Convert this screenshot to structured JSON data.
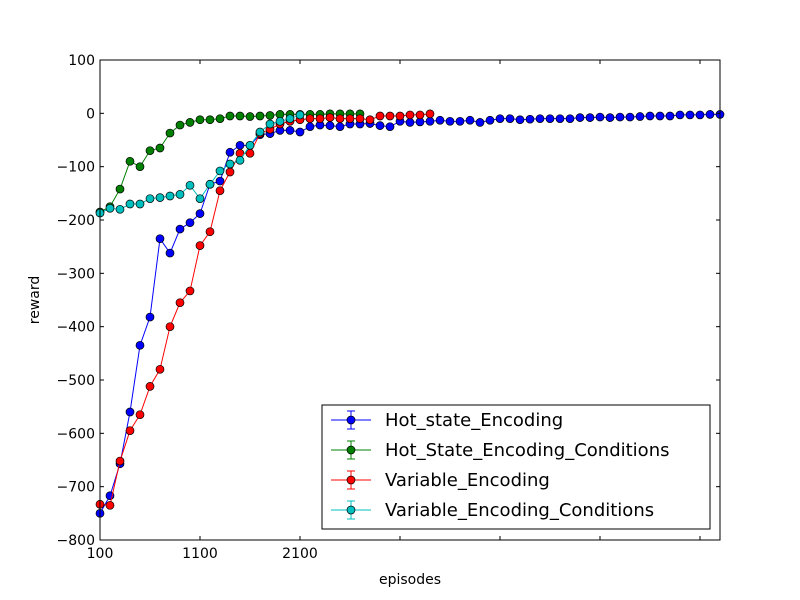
{
  "chart_data": {
    "type": "line",
    "xlabel": "episodes",
    "ylabel": "reward",
    "xlim": [
      100,
      6300
    ],
    "ylim": [
      -800,
      100
    ],
    "xticks": [
      100,
      1100,
      2100,
      3100,
      4100,
      5100,
      6100
    ],
    "xtick_labels": [
      "100",
      "1100",
      "2100",
      "",
      "",
      "",
      ""
    ],
    "yticks": [
      -800,
      -700,
      -600,
      -500,
      -400,
      -300,
      -200,
      -100,
      0,
      100
    ],
    "ytick_labels": [
      "−800",
      "−700",
      "−600",
      "−500",
      "−400",
      "−300",
      "−200",
      "−100",
      "0",
      "100"
    ],
    "grid": false,
    "legend_position": "lower-right",
    "series": [
      {
        "name": "Hot_state_Encoding",
        "color": "#0000ff",
        "x": [
          100,
          200,
          300,
          400,
          500,
          600,
          700,
          800,
          900,
          1000,
          1100,
          1200,
          1300,
          1400,
          1500,
          1600,
          1700,
          1800,
          1900,
          2000,
          2100,
          2200,
          2300,
          2400,
          2500,
          2600,
          2700,
          2800,
          2900,
          3000,
          3100,
          3200,
          3300,
          3400,
          3500,
          3600,
          3700,
          3800,
          3900,
          4000,
          4100,
          4200,
          4300,
          4400,
          4500,
          4600,
          4700,
          4800,
          4900,
          5000,
          5100,
          5200,
          5300,
          5400,
          5500,
          5600,
          5700,
          5800,
          5900,
          6000,
          6100,
          6200,
          6300
        ],
        "values": [
          -750,
          -717,
          -657,
          -560,
          -435,
          -382,
          -235,
          -262,
          -217,
          -205,
          -188,
          -133,
          -127,
          -73,
          -60,
          -60,
          -40,
          -38,
          -32,
          -32,
          -35,
          -25,
          -22,
          -23,
          -25,
          -20,
          -20,
          -19,
          -23,
          -25,
          -15,
          -17,
          -16,
          -15,
          -13,
          -15,
          -15,
          -13,
          -17,
          -13,
          -10,
          -10,
          -12,
          -11,
          -10,
          -10,
          -10,
          -10,
          -8,
          -8,
          -7,
          -8,
          -7,
          -7,
          -6,
          -5,
          -5,
          -5,
          -3,
          -3,
          -3,
          -2,
          -2
        ]
      },
      {
        "name": "Hot_State_Encoding_Conditions",
        "color": "#008000",
        "x": [
          100,
          200,
          300,
          400,
          500,
          600,
          700,
          800,
          900,
          1000,
          1100,
          1200,
          1300,
          1400,
          1500,
          1600,
          1700,
          1800,
          1900,
          2000,
          2100,
          2200,
          2300,
          2400,
          2500,
          2600,
          2700
        ],
        "values": [
          -185,
          -175,
          -142,
          -90,
          -100,
          -70,
          -65,
          -37,
          -22,
          -17,
          -12,
          -12,
          -10,
          -5,
          -5,
          -6,
          -5,
          -4,
          -2,
          -2,
          -2,
          -2,
          -2,
          -1,
          -1,
          -1,
          -1
        ]
      },
      {
        "name": "Variable_Encoding",
        "color": "#ff0000",
        "x": [
          100,
          200,
          300,
          400,
          500,
          600,
          700,
          800,
          900,
          1000,
          1100,
          1200,
          1300,
          1400,
          1500,
          1600,
          1700,
          1800,
          1900,
          2000,
          2100,
          2200,
          2300,
          2400,
          2500,
          2600,
          2700,
          2800,
          2900,
          3000,
          3100,
          3200,
          3300,
          3400
        ],
        "values": [
          -733,
          -735,
          -652,
          -595,
          -565,
          -512,
          -480,
          -400,
          -355,
          -333,
          -248,
          -222,
          -145,
          -110,
          -75,
          -75,
          -38,
          -30,
          -20,
          -15,
          -12,
          -10,
          -10,
          -8,
          -10,
          -10,
          -10,
          -12,
          -5,
          -5,
          -5,
          -3,
          -3,
          -1
        ]
      },
      {
        "name": "Variable_Encoding_Conditions",
        "color": "#00bfbf",
        "x": [
          100,
          200,
          300,
          400,
          500,
          600,
          700,
          800,
          900,
          1000,
          1100,
          1200,
          1300,
          1400,
          1500,
          1600,
          1700,
          1800,
          1900,
          2000,
          2100
        ],
        "values": [
          -187,
          -178,
          -180,
          -170,
          -170,
          -160,
          -158,
          -155,
          -152,
          -135,
          -160,
          -133,
          -108,
          -95,
          -88,
          -60,
          -35,
          -20,
          -15,
          -10,
          -3
        ]
      }
    ]
  }
}
